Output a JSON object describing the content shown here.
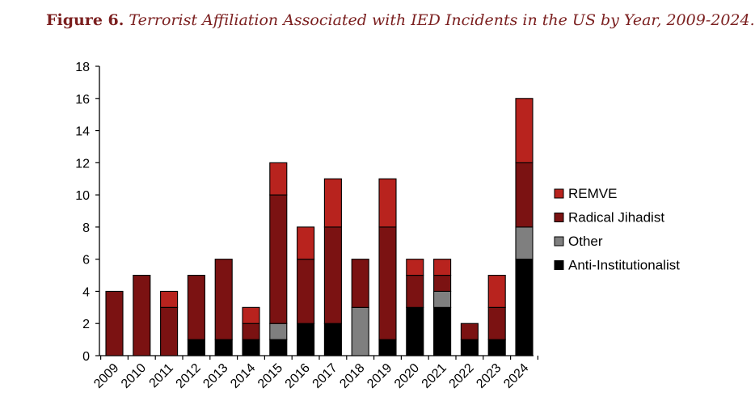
{
  "caption": {
    "number": "Figure 6.",
    "title": "Terrorist Affiliation Associated with IED Incidents in the US by Year, 2009-2024."
  },
  "colors": {
    "title": "#7b1f1f",
    "axis": "#000000"
  },
  "chart_data": {
    "type": "bar",
    "stacked": true,
    "title": "Terrorist Affiliation Associated with IED Incidents in the US by Year, 2009-2024.",
    "xlabel": "",
    "ylabel": "",
    "ylim": [
      0,
      18
    ],
    "yticks": [
      0,
      2,
      4,
      6,
      8,
      10,
      12,
      14,
      16,
      18
    ],
    "grid": false,
    "legend_position": "right",
    "categories": [
      "2009",
      "2010",
      "2011",
      "2012",
      "2013",
      "2014",
      "2015",
      "2016",
      "2017",
      "2018",
      "2019",
      "2020",
      "2021",
      "2022",
      "2023",
      "2024"
    ],
    "series": [
      {
        "name": "Anti-Institutionalist",
        "color": "#000000",
        "values": [
          0,
          0,
          0,
          1,
          1,
          1,
          1,
          2,
          2,
          0,
          1,
          3,
          3,
          1,
          1,
          6
        ]
      },
      {
        "name": "Other",
        "color": "#7f7f7f",
        "values": [
          0,
          0,
          0,
          0,
          0,
          0,
          1,
          0,
          0,
          3,
          0,
          0,
          1,
          0,
          0,
          2
        ]
      },
      {
        "name": "Radical Jihadist",
        "color": "#7b1212",
        "values": [
          4,
          5,
          3,
          4,
          5,
          1,
          8,
          4,
          6,
          3,
          7,
          2,
          1,
          1,
          2,
          4
        ]
      },
      {
        "name": "REMVE",
        "color": "#b8231e",
        "values": [
          0,
          0,
          1,
          0,
          0,
          1,
          2,
          2,
          3,
          0,
          3,
          1,
          1,
          0,
          2,
          4
        ]
      }
    ],
    "legend_order": [
      "REMVE",
      "Radical Jihadist",
      "Other",
      "Anti-Institutionalist"
    ]
  }
}
